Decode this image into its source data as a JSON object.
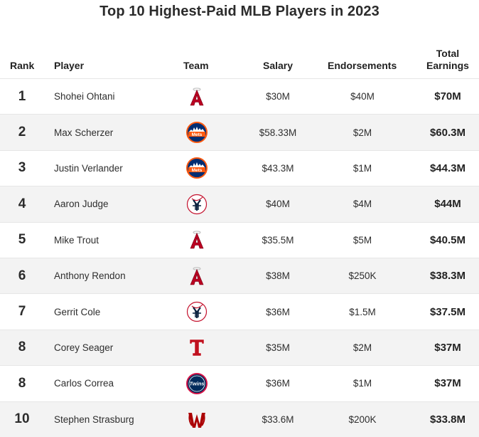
{
  "title": "Top 10 Highest-Paid MLB Players in 2023",
  "chart_data": {
    "type": "table",
    "title": "Top 10 Highest-Paid MLB Players in 2023",
    "columns": [
      "Rank",
      "Player",
      "Team",
      "Salary",
      "Endorsements",
      "Total Earnings"
    ],
    "rows": [
      {
        "rank": "1",
        "player": "Shohei Ohtani",
        "team_logo": "angels-logo-icon",
        "salary": "$30M",
        "endorsements": "$40M",
        "total": "$70M"
      },
      {
        "rank": "2",
        "player": "Max Scherzer",
        "team_logo": "mets-logo-icon",
        "salary": "$58.33M",
        "endorsements": "$2M",
        "total": "$60.3M"
      },
      {
        "rank": "3",
        "player": "Justin Verlander",
        "team_logo": "mets-logo-icon",
        "salary": "$43.3M",
        "endorsements": "$1M",
        "total": "$44.3M"
      },
      {
        "rank": "4",
        "player": "Aaron Judge",
        "team_logo": "yankees-logo-icon",
        "salary": "$40M",
        "endorsements": "$4M",
        "total": "$44M"
      },
      {
        "rank": "5",
        "player": "Mike Trout",
        "team_logo": "angels-logo-icon",
        "salary": "$35.5M",
        "endorsements": "$5M",
        "total": "$40.5M"
      },
      {
        "rank": "6",
        "player": "Anthony Rendon",
        "team_logo": "angels-logo-icon",
        "salary": "$38M",
        "endorsements": "$250K",
        "total": "$38.3M"
      },
      {
        "rank": "7",
        "player": "Gerrit Cole",
        "team_logo": "yankees-logo-icon",
        "salary": "$36M",
        "endorsements": "$1.5M",
        "total": "$37.5M"
      },
      {
        "rank": "8",
        "player": "Corey Seager",
        "team_logo": "rangers-logo-icon",
        "salary": "$35M",
        "endorsements": "$2M",
        "total": "$37M"
      },
      {
        "rank": "8",
        "player": "Carlos Correa",
        "team_logo": "twins-logo-icon",
        "salary": "$36M",
        "endorsements": "$1M",
        "total": "$37M"
      },
      {
        "rank": "10",
        "player": "Stephen Strasburg",
        "team_logo": "nationals-logo-icon",
        "salary": "$33.6M",
        "endorsements": "$200K",
        "total": "$33.8M"
      }
    ]
  },
  "header": {
    "rank": "Rank",
    "player": "Player",
    "team": "Team",
    "salary": "Salary",
    "endorsements": "Endorsements",
    "total_line1": "Total",
    "total_line2": "Earnings"
  },
  "colors": {
    "angels_red": "#ba0021",
    "mets_blue": "#002d72",
    "mets_orange": "#ff5910",
    "yankees_navy": "#0c2340",
    "yankees_red": "#c4122e",
    "rangers_red": "#c0111f",
    "twins_navy": "#002b5c",
    "twins_red": "#d31145",
    "nationals_red": "#ab0003"
  }
}
